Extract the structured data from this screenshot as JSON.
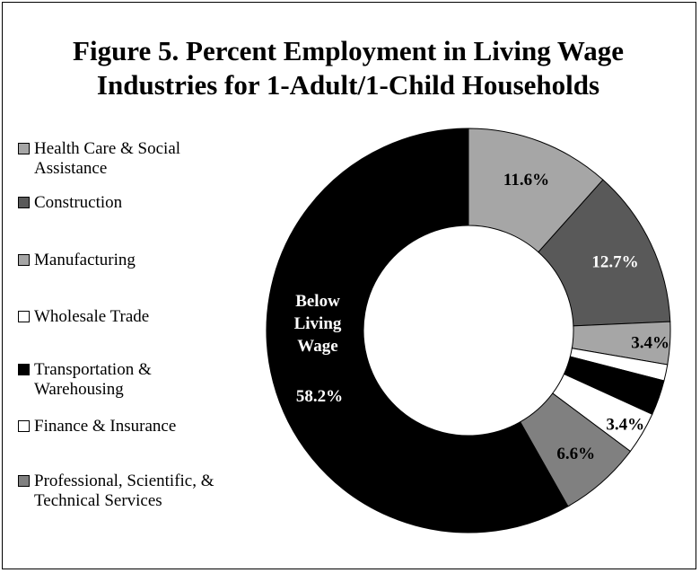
{
  "chart_data": {
    "type": "pie",
    "donut": true,
    "title_lines": [
      "Figure 5. Percent Employment in Living Wage",
      "Industries for 1-Adult/1-Child Households"
    ],
    "slices": [
      {
        "label": "Health Care & Social Assistance",
        "value": 11.6,
        "value_label": "11.6%",
        "color": "#a6a6a6"
      },
      {
        "label": "Construction",
        "value": 12.7,
        "value_label": "12.7%",
        "color": "#595959"
      },
      {
        "label": "Manufacturing",
        "value": 3.4,
        "value_label": "3.4%",
        "color": "#a6a6a6"
      },
      {
        "label": "Wholesale Trade",
        "value": 1.3,
        "value_label": "",
        "color": "#ffffff"
      },
      {
        "label": "Transportation & Warehousing",
        "value": 2.8,
        "value_label": "",
        "color": "#000000"
      },
      {
        "label": "Finance & Insurance",
        "value": 3.4,
        "value_label": "3.4%",
        "color": "#ffffff"
      },
      {
        "label": "Professional, Scientific, & Technical Services",
        "value": 6.6,
        "value_label": "6.6%",
        "color": "#808080"
      },
      {
        "label": "Below Living Wage",
        "value": 58.2,
        "value_label": "58.2%",
        "color": "#000000"
      }
    ],
    "legend": [
      {
        "lines": [
          "Health Care & Social",
          "Assistance"
        ],
        "color": "#a6a6a6"
      },
      {
        "lines": [
          "Construction"
        ],
        "color": "#595959"
      },
      {
        "lines": [
          "Manufacturing"
        ],
        "color": "#a6a6a6"
      },
      {
        "lines": [
          "Wholesale Trade"
        ],
        "color": "#ffffff"
      },
      {
        "lines": [
          "Transportation &",
          "Warehousing"
        ],
        "color": "#000000"
      },
      {
        "lines": [
          "Finance & Insurance"
        ],
        "color": "#ffffff"
      },
      {
        "lines": [
          "Professional, Scientific, &",
          "Technical Services"
        ],
        "color": "#808080"
      }
    ],
    "below_label_lines": [
      "Below",
      "Living",
      "Wage"
    ],
    "legend_placement": "left"
  }
}
